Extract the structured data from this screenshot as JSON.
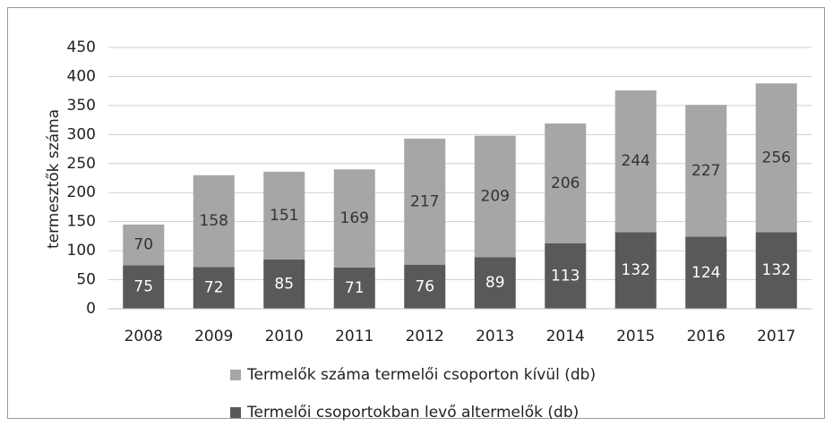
{
  "chart_data": {
    "type": "stacked_bar",
    "y_label": "termesztők száma",
    "categories": [
      "2008",
      "2009",
      "2010",
      "2011",
      "2012",
      "2013",
      "2014",
      "2015",
      "2016",
      "2017"
    ],
    "series": [
      {
        "name": "Termelők száma termelői csoporton kívül (db)",
        "color": "#a6a6a6",
        "values": [
          70,
          158,
          151,
          169,
          217,
          209,
          206,
          244,
          227,
          256
        ]
      },
      {
        "name": "Termelői csoportokban levő altermelők (db)",
        "color": "#595959",
        "values": [
          75,
          72,
          85,
          71,
          76,
          89,
          113,
          132,
          124,
          132
        ]
      }
    ],
    "ylim": [
      0,
      450
    ],
    "yticks": [
      0,
      50,
      100,
      150,
      200,
      250,
      300,
      350,
      400,
      450
    ],
    "grid": true
  }
}
